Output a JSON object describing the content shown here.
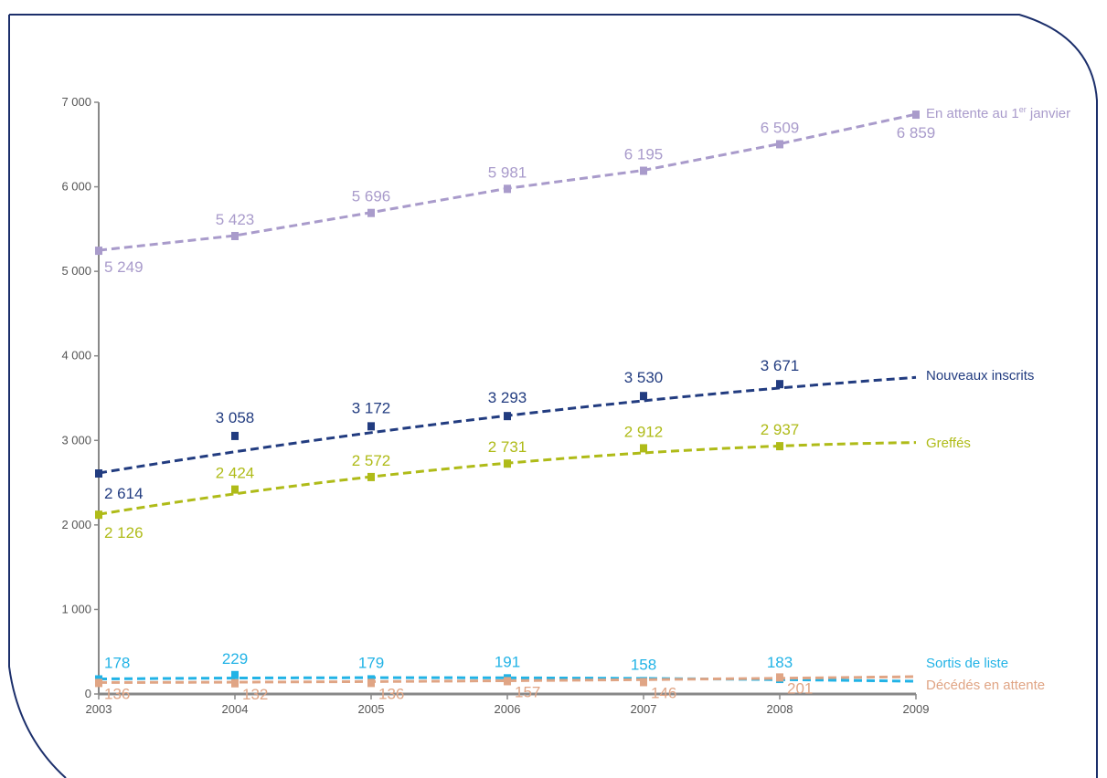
{
  "chart_data": {
    "type": "line",
    "x": [
      "2003",
      "2004",
      "2005",
      "2006",
      "2007",
      "2008",
      "2009"
    ],
    "ylim": [
      0,
      7000
    ],
    "yticks": [
      "0",
      "1 000",
      "2 000",
      "3 000",
      "4 000",
      "5 000",
      "6 000",
      "7 000"
    ],
    "grid": false,
    "legend": "right end of each line",
    "series": [
      {
        "name": "En attente au 1er janvier",
        "name_main": "En attente au 1",
        "name_sup": "er",
        "name_rest": " janvier",
        "color": "#a99bcb",
        "values": [
          5249,
          5423,
          5696,
          5981,
          6195,
          6509,
          6859
        ],
        "labels": [
          "5 249",
          "5 423",
          "5 696",
          "5 981",
          "6 195",
          "6 509",
          "6 859"
        ]
      },
      {
        "name": "Nouveaux inscrits",
        "color": "#223c80",
        "values": [
          2614,
          3058,
          3172,
          3293,
          3530,
          3671,
          null
        ],
        "labels": [
          "2 614",
          "3 058",
          "3 172",
          "3 293",
          "3 530",
          "3 671",
          null
        ]
      },
      {
        "name": "Greffés",
        "color": "#afbb18",
        "values": [
          2126,
          2424,
          2572,
          2731,
          2912,
          2937,
          null
        ],
        "labels": [
          "2 126",
          "2 424",
          "2 572",
          "2 731",
          "2 912",
          "2 937",
          null
        ]
      },
      {
        "name": "Sortis de liste",
        "color": "#22b3e6",
        "values": [
          178,
          229,
          179,
          191,
          158,
          183,
          null
        ],
        "labels": [
          "178",
          "229",
          "179",
          "191",
          "158",
          "183",
          null
        ]
      },
      {
        "name": "Décédés en attente",
        "color": "#e0a585",
        "values": [
          136,
          132,
          136,
          157,
          146,
          201,
          null
        ],
        "labels": [
          "136",
          "132",
          "136",
          "157",
          "146",
          "201",
          null
        ]
      }
    ]
  },
  "colors": {
    "frame": "#1c2f6b",
    "axis": "#888888"
  }
}
